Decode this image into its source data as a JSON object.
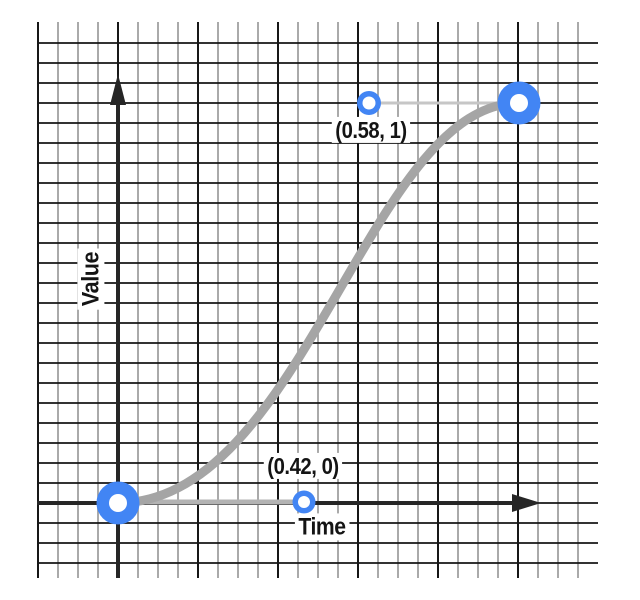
{
  "chart_data": {
    "type": "line",
    "subtype": "cubic-bezier-easing-curve",
    "title": "",
    "xlabel": "Time",
    "ylabel": "Value",
    "x_range": [
      0,
      1
    ],
    "y_range": [
      0,
      1
    ],
    "grid": true,
    "start_point": [
      0,
      0
    ],
    "end_point": [
      1,
      1
    ],
    "control_points": [
      {
        "point": [
          0.42,
          0
        ],
        "label": "(0.42, 0)",
        "attached_to": "start-point"
      },
      {
        "point": [
          0.58,
          1
        ],
        "label": "(0.58, 1)",
        "attached_to": "end-point"
      }
    ],
    "annotations": [
      "(0.42, 0)",
      "(0.58, 1)"
    ],
    "legend": "none"
  },
  "labels": {
    "x_axis": "Time",
    "y_axis": "Value",
    "control_point_1": "(0.42, 0)",
    "control_point_2": "(0.58, 1)"
  },
  "colors": {
    "background": "#ffffff",
    "point_blue": "#4285f4",
    "point_core_white": "#ffffff",
    "curve_gray": "#a5a5a5",
    "handle_light_gray": "#c6c6c6",
    "handle_over_axis_gray": "#b3b3b3",
    "grid_dark": "#161616",
    "grid_light": "#9b9b9b",
    "axis_black": "#262626",
    "text_black": "#141414"
  }
}
